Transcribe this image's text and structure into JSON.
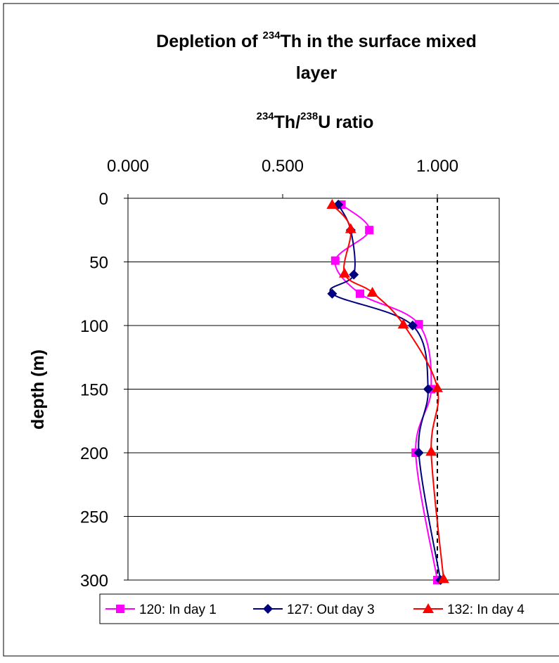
{
  "chart_data": {
    "type": "line",
    "title": {
      "line1_pre": "Depletion of ",
      "line1_sup": "234",
      "line1_post": "Th in the surface mixed",
      "line2": "layer"
    },
    "x_axis": {
      "label_sup1": "234",
      "label_mid": "Th/",
      "label_sup2": "238",
      "label_post": "U ratio",
      "position": "top",
      "range": [
        0.0,
        1.2
      ],
      "ticks": [
        {
          "value": 0.0,
          "label": "0.000"
        },
        {
          "value": 0.5,
          "label": "0.500"
        },
        {
          "value": 1.0,
          "label": "1.000"
        }
      ]
    },
    "y_axis": {
      "label": "depth (m)",
      "reversed": true,
      "range": [
        0,
        300
      ],
      "ticks": [
        {
          "value": 0,
          "label": "0"
        },
        {
          "value": 50,
          "label": "50"
        },
        {
          "value": 100,
          "label": "100"
        },
        {
          "value": 150,
          "label": "150"
        },
        {
          "value": 200,
          "label": "200"
        },
        {
          "value": 250,
          "label": "250"
        },
        {
          "value": 300,
          "label": "300"
        }
      ]
    },
    "grid": "horizontal major",
    "reference_line": {
      "x": 1.0,
      "style": "dashed"
    },
    "legend_position": "bottom",
    "series": [
      {
        "name": "120: In day 1",
        "color": "#ff00ff",
        "marker": "square",
        "points": [
          [
            0.69,
            5
          ],
          [
            0.78,
            25
          ],
          [
            0.67,
            49
          ],
          [
            0.75,
            75
          ],
          [
            0.94,
            99
          ],
          [
            0.98,
            150
          ],
          [
            0.93,
            200
          ],
          [
            1.0,
            300
          ]
        ]
      },
      {
        "name": "127: Out day 3",
        "color": "#000080",
        "marker": "diamond",
        "points": [
          [
            0.68,
            5
          ],
          [
            0.72,
            25
          ],
          [
            0.73,
            60
          ],
          [
            0.66,
            75
          ],
          [
            0.92,
            100
          ],
          [
            0.97,
            150
          ],
          [
            0.94,
            200
          ],
          [
            1.01,
            300
          ]
        ]
      },
      {
        "name": "132: In day 4",
        "color": "#ff0000",
        "marker": "triangle",
        "points": [
          [
            0.66,
            5
          ],
          [
            0.72,
            24
          ],
          [
            0.7,
            59
          ],
          [
            0.79,
            74
          ],
          [
            0.89,
            99
          ],
          [
            1.0,
            149
          ],
          [
            0.98,
            199
          ],
          [
            1.02,
            299
          ]
        ]
      }
    ]
  }
}
